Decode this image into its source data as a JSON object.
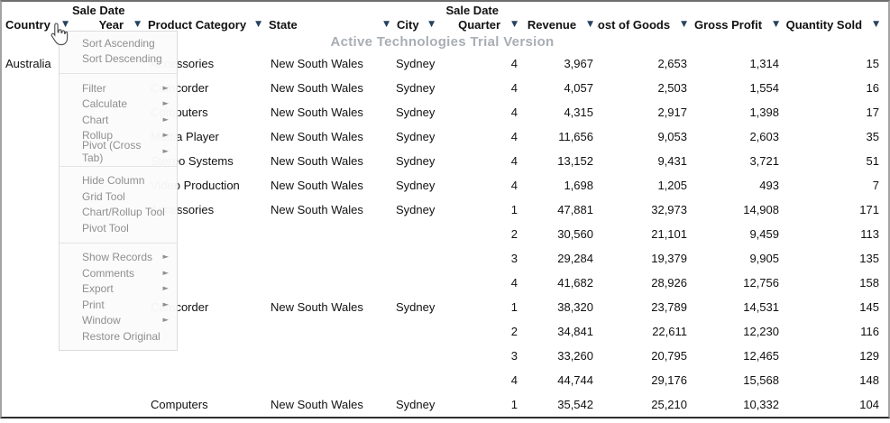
{
  "watermark": {
    "text": "Active Technologies Trial Version"
  },
  "icons": {
    "dropdown": "▼",
    "submenu": "►",
    "cursor": "hand-pointer"
  },
  "colors": {
    "arrow": "#26425f",
    "menu_text": "#8f8f8f",
    "watermark": "#a9aeb4",
    "header_text": "#111111",
    "data_text": "#111111"
  },
  "table": {
    "columns": [
      {
        "id": "country",
        "group": "",
        "label": "Country",
        "align": "left"
      },
      {
        "id": "sale-date-year",
        "group": "Sale Date",
        "label": "Year",
        "align": "right"
      },
      {
        "id": "product-category",
        "group": "",
        "label": "Product Category",
        "align": "left"
      },
      {
        "id": "state",
        "group": "",
        "label": "State",
        "align": "left"
      },
      {
        "id": "city",
        "group": "",
        "label": "City",
        "align": "left"
      },
      {
        "id": "sale-date-quarter",
        "group": "Sale Date",
        "label": "Quarter",
        "align": "right"
      },
      {
        "id": "revenue",
        "group": "",
        "label": "Revenue",
        "align": "right"
      },
      {
        "id": "cost-of-goods",
        "group": "",
        "label": "Cost of Goods",
        "align": "right"
      },
      {
        "id": "gross-profit",
        "group": "",
        "label": "Gross Profit",
        "align": "right"
      },
      {
        "id": "quantity-sold",
        "group": "",
        "label": "Quantity Sold",
        "align": "right"
      }
    ],
    "rows": [
      [
        "Australia",
        "",
        "Accessories",
        "New South Wales",
        "Sydney",
        "4",
        "3,967",
        "2,653",
        "1,314",
        "15"
      ],
      [
        "",
        "",
        "Camcorder",
        "New South Wales",
        "Sydney",
        "4",
        "4,057",
        "2,503",
        "1,554",
        "16"
      ],
      [
        "",
        "",
        "Computers",
        "New South Wales",
        "Sydney",
        "4",
        "4,315",
        "2,917",
        "1,398",
        "17"
      ],
      [
        "",
        "",
        "Media Player",
        "New South Wales",
        "Sydney",
        "4",
        "11,656",
        "9,053",
        "2,603",
        "35"
      ],
      [
        "",
        "",
        "Stereo Systems",
        "New South Wales",
        "Sydney",
        "4",
        "13,152",
        "9,431",
        "3,721",
        "51"
      ],
      [
        "",
        "",
        "Video Production",
        "New South Wales",
        "Sydney",
        "4",
        "1,698",
        "1,205",
        "493",
        "7"
      ],
      [
        "",
        "",
        "Accessories",
        "New South Wales",
        "Sydney",
        "1",
        "47,881",
        "32,973",
        "14,908",
        "171"
      ],
      [
        "",
        "",
        "",
        "",
        "",
        "2",
        "30,560",
        "21,101",
        "9,459",
        "113"
      ],
      [
        "",
        "",
        "",
        "",
        "",
        "3",
        "29,284",
        "19,379",
        "9,905",
        "135"
      ],
      [
        "",
        "",
        "",
        "",
        "",
        "4",
        "41,682",
        "28,926",
        "12,756",
        "158"
      ],
      [
        "",
        "",
        "Camcorder",
        "New South Wales",
        "Sydney",
        "1",
        "38,320",
        "23,789",
        "14,531",
        "145"
      ],
      [
        "",
        "",
        "",
        "",
        "",
        "2",
        "34,841",
        "22,611",
        "12,230",
        "116"
      ],
      [
        "",
        "",
        "",
        "",
        "",
        "3",
        "33,260",
        "20,795",
        "12,465",
        "129"
      ],
      [
        "",
        "",
        "",
        "",
        "",
        "4",
        "44,744",
        "29,176",
        "15,568",
        "148"
      ],
      [
        "",
        "",
        "Computers",
        "New South Wales",
        "Sydney",
        "1",
        "35,542",
        "25,210",
        "10,332",
        "104"
      ]
    ]
  },
  "menu": {
    "items": [
      {
        "label": "Sort Ascending",
        "submenu": false
      },
      {
        "label": "Sort Descending",
        "submenu": false
      },
      {
        "separator": true
      },
      {
        "label": "Filter",
        "submenu": true
      },
      {
        "label": "Calculate",
        "submenu": true
      },
      {
        "label": "Chart",
        "submenu": true
      },
      {
        "label": "Rollup",
        "submenu": true
      },
      {
        "label": "Pivot (Cross Tab)",
        "submenu": true
      },
      {
        "separator": true
      },
      {
        "label": "Hide Column",
        "submenu": false
      },
      {
        "label": "Grid Tool",
        "submenu": false
      },
      {
        "label": "Chart/Rollup Tool",
        "submenu": false
      },
      {
        "label": "Pivot Tool",
        "submenu": false
      },
      {
        "separator": true
      },
      {
        "label": "Show Records",
        "submenu": true
      },
      {
        "label": "Comments",
        "submenu": true
      },
      {
        "label": "Export",
        "submenu": true
      },
      {
        "label": "Print",
        "submenu": true
      },
      {
        "label": "Window",
        "submenu": true
      },
      {
        "label": "Restore Original",
        "submenu": false
      }
    ]
  }
}
